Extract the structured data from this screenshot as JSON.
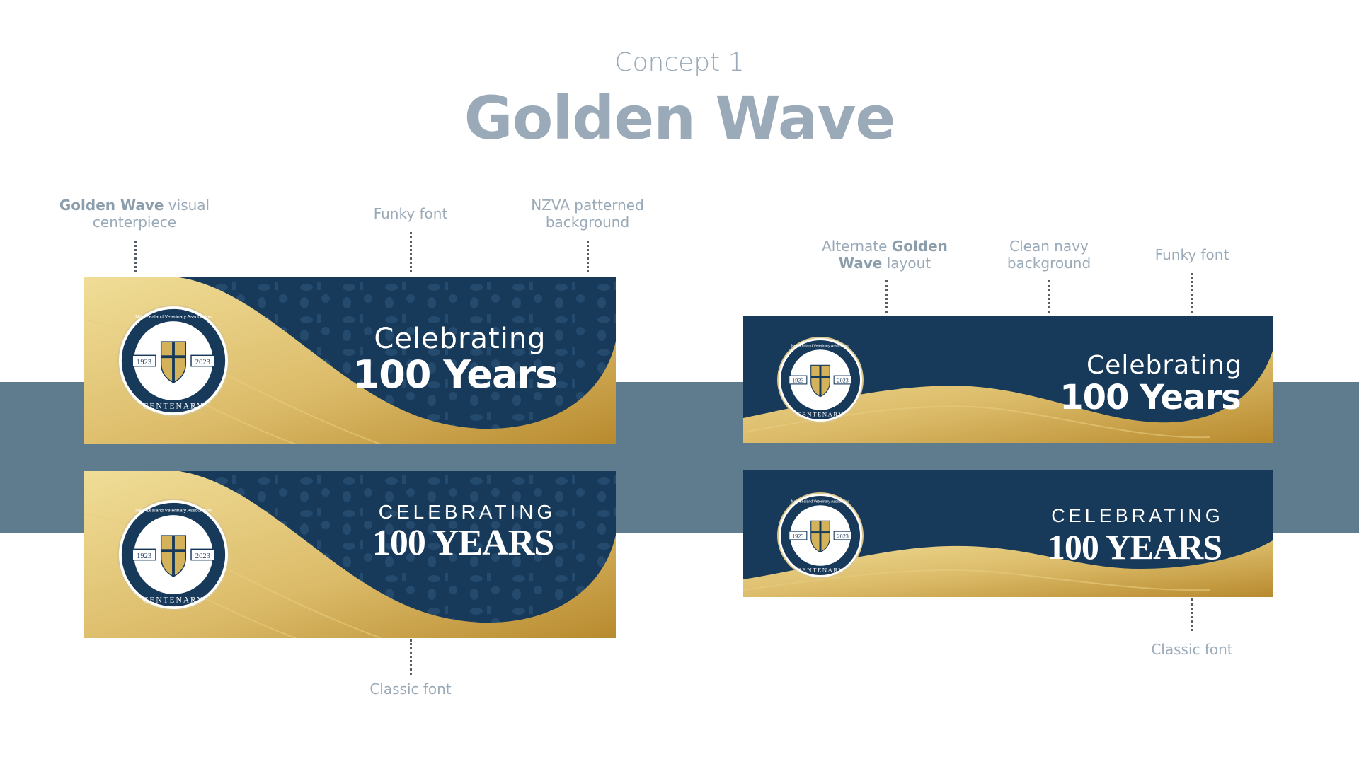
{
  "header": {
    "eyebrow": "Concept 1",
    "title": "Golden Wave"
  },
  "annotations": {
    "left_top_1_bold": "Golden Wave",
    "left_top_1_rest": " visual",
    "left_top_1_line2": "centerpiece",
    "left_top_2": "Funky font",
    "left_top_3_line1": "NZVA patterned",
    "left_top_3_line2": "background",
    "left_bottom": "Classic font",
    "right_top_1_line1_pre": "Alternate ",
    "right_top_1_line1_bold": "Golden",
    "right_top_1_line2_bold": "Wave",
    "right_top_1_line2_rest": " layout",
    "right_top_2_line1": "Clean navy",
    "right_top_2_line2": "background",
    "right_top_3": "Funky font",
    "right_bottom": "Classic font"
  },
  "seal": {
    "ring_text": "New Zealand Veterinary Association",
    "year_start": "1923",
    "year_end": "2023",
    "label": "CENTENARY"
  },
  "banners": {
    "funky": {
      "line1": "Celebrating",
      "line2": "100 Years"
    },
    "classic": {
      "line1": "CELEBRATING",
      "line2": "100 YEARS"
    }
  },
  "colors": {
    "navy": "#17395a",
    "gold_light": "#f0dd97",
    "gold_dark": "#b88a2e",
    "band": "#5f7b8e",
    "annotation": "#9aaab8"
  }
}
